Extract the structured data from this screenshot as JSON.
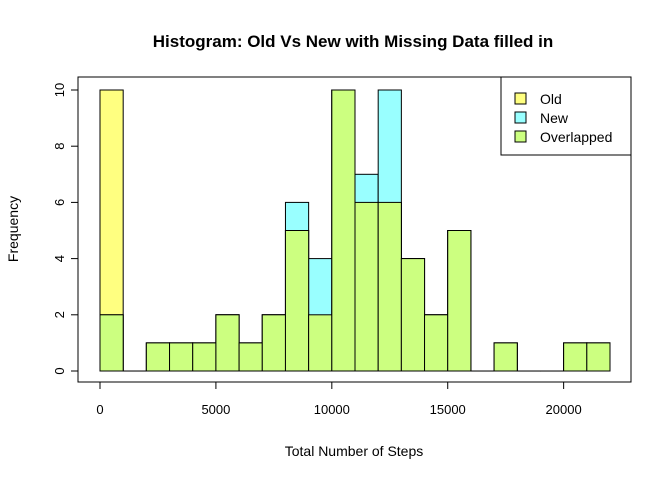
{
  "chart_data": {
    "type": "bar",
    "title": "Histogram: Old Vs New with Missing Data filled in",
    "xlabel": "Total Number of Steps",
    "ylabel": "Frequency",
    "xlim": [
      0,
      22000
    ],
    "ylim": [
      0,
      10
    ],
    "bin_width": 1000,
    "x_ticks": [
      0,
      5000,
      10000,
      15000,
      20000
    ],
    "x_tick_labels": [
      "0",
      "5000",
      "10000",
      "15000",
      "20000"
    ],
    "y_ticks": [
      0,
      2,
      4,
      6,
      8,
      10
    ],
    "y_tick_labels": [
      "0",
      "2",
      "4",
      "6",
      "8",
      "10"
    ],
    "bin_starts": [
      0,
      1000,
      2000,
      3000,
      4000,
      5000,
      6000,
      7000,
      8000,
      9000,
      10000,
      11000,
      12000,
      13000,
      14000,
      15000,
      16000,
      17000,
      18000,
      19000,
      20000,
      21000
    ],
    "series": [
      {
        "name": "Old",
        "color": "#ffff80",
        "values": [
          10,
          0,
          1,
          1,
          1,
          2,
          1,
          2,
          5,
          2,
          10,
          6,
          6,
          4,
          2,
          5,
          0,
          1,
          0,
          0,
          1,
          1
        ]
      },
      {
        "name": "New",
        "color": "#99ffff",
        "values": [
          2,
          0,
          1,
          1,
          1,
          2,
          1,
          2,
          6,
          4,
          10,
          7,
          10,
          4,
          2,
          5,
          0,
          1,
          0,
          0,
          1,
          1
        ]
      },
      {
        "name": "Overlapped",
        "color": "#ccff80",
        "values": [
          2,
          0,
          1,
          1,
          1,
          2,
          1,
          2,
          5,
          2,
          10,
          6,
          6,
          4,
          2,
          5,
          0,
          1,
          0,
          0,
          1,
          1
        ]
      }
    ],
    "legend_position": "top-right",
    "grid": false
  }
}
